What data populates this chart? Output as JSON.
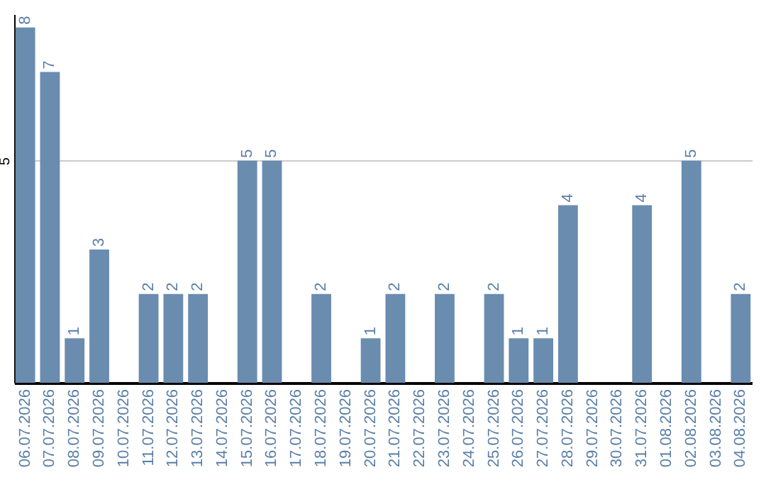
{
  "chart_data": {
    "type": "bar",
    "categories": [
      "06.07.2026",
      "07.07.2026",
      "08.07.2026",
      "09.07.2026",
      "10.07.2026",
      "11.07.2026",
      "12.07.2026",
      "13.07.2026",
      "14.07.2026",
      "15.07.2026",
      "16.07.2026",
      "17.07.2026",
      "18.07.2026",
      "19.07.2026",
      "20.07.2026",
      "21.07.2026",
      "22.07.2026",
      "23.07.2026",
      "24.07.2026",
      "25.07.2026",
      "26.07.2026",
      "27.07.2026",
      "28.07.2026",
      "29.07.2026",
      "30.07.2026",
      "31.07.2026",
      "01.08.2026",
      "02.08.2026",
      "03.08.2026",
      "04.08.2026"
    ],
    "values": [
      8,
      7,
      1,
      3,
      null,
      2,
      2,
      2,
      null,
      5,
      5,
      null,
      2,
      null,
      1,
      2,
      null,
      2,
      null,
      2,
      1,
      1,
      4,
      null,
      null,
      4,
      null,
      5,
      null,
      2
    ],
    "color": "#6a8caf",
    "ylim": [
      0,
      8.3
    ],
    "yticks": [
      5
    ],
    "grid": "y",
    "data_labels": true
  }
}
